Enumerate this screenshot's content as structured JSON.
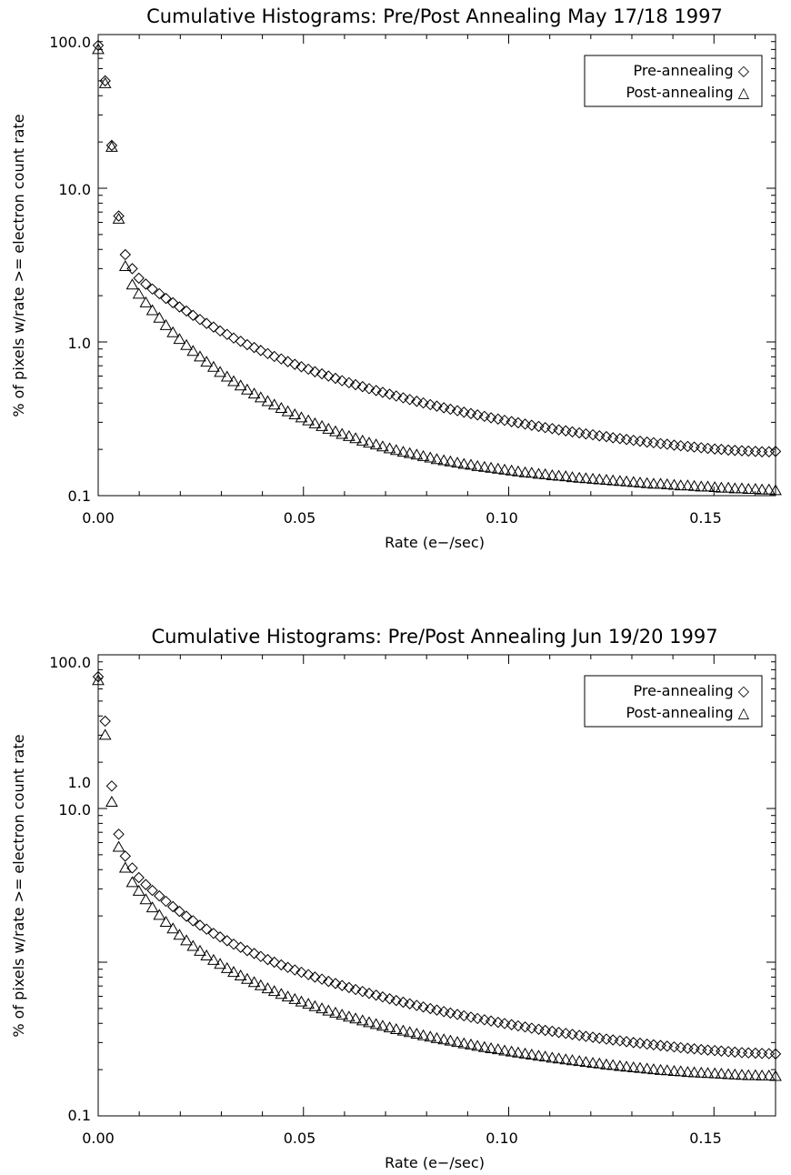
{
  "chart_data": [
    {
      "type": "scatter",
      "title": "Cumulative Histograms: Pre/Post Annealing May 17/18 1997",
      "xlabel": "Rate (e−/sec)",
      "ylabel": "% of pixels w/rate >= electron count rate",
      "xlim": [
        0,
        0.165
      ],
      "ylim": [
        0.1,
        100
      ],
      "yscale": "log",
      "xticks": [
        "0.00",
        "0.05",
        "0.10",
        "0.15"
      ],
      "yticks": [
        "0.1",
        "1.0",
        "10.0",
        "100.0"
      ],
      "grid": false,
      "legend_position": "top-right",
      "series": [
        {
          "name": "Pre-annealing ◇",
          "marker": "diamond",
          "x": [
            0,
            0.0017,
            0.0033,
            0.005,
            0.0066,
            0.0083,
            0.0099,
            0.0116,
            0.0132,
            0.0149,
            0.0165,
            0.0182,
            0.0198,
            0.0215,
            0.0231,
            0.0248,
            0.0264,
            0.0281,
            0.0297,
            0.0314,
            0.033,
            0.0347,
            0.0363,
            0.038,
            0.0396,
            0.0413,
            0.0429,
            0.0446,
            0.0462,
            0.0479,
            0.0495,
            0.0512,
            0.0528,
            0.0545,
            0.0561,
            0.0578,
            0.0594,
            0.0611,
            0.0627,
            0.0644,
            0.066,
            0.0677,
            0.0693,
            0.071,
            0.0726,
            0.0743,
            0.0759,
            0.0776,
            0.0792,
            0.0809,
            0.0825,
            0.0842,
            0.0858,
            0.0875,
            0.0891,
            0.0908,
            0.0924,
            0.0941,
            0.0957,
            0.0974,
            0.099,
            0.1007,
            0.1023,
            0.104,
            0.1056,
            0.1073,
            0.1089,
            0.1106,
            0.1122,
            0.1139,
            0.1155,
            0.1172,
            0.1188,
            0.1205,
            0.1221,
            0.1238,
            0.1254,
            0.1271,
            0.1287,
            0.1304,
            0.132,
            0.1337,
            0.1353,
            0.137,
            0.1386,
            0.1403,
            0.1419,
            0.1436,
            0.1452,
            0.1469,
            0.1485,
            0.1502,
            0.1518,
            0.1535,
            0.1551,
            0.1568,
            0.1584,
            0.1601,
            0.1617,
            0.1634,
            0.165
          ],
          "y": [
            85,
            50,
            19,
            6.6,
            3.7,
            3.0,
            2.6,
            2.38,
            2.21,
            2.06,
            1.92,
            1.8,
            1.69,
            1.59,
            1.49,
            1.4,
            1.32,
            1.25,
            1.18,
            1.12,
            1.06,
            1.01,
            0.96,
            0.92,
            0.88,
            0.84,
            0.805,
            0.775,
            0.745,
            0.715,
            0.69,
            0.665,
            0.64,
            0.62,
            0.6,
            0.58,
            0.56,
            0.543,
            0.527,
            0.512,
            0.497,
            0.483,
            0.47,
            0.457,
            0.445,
            0.433,
            0.422,
            0.411,
            0.401,
            0.391,
            0.382,
            0.373,
            0.365,
            0.357,
            0.349,
            0.342,
            0.335,
            0.328,
            0.321,
            0.315,
            0.309,
            0.303,
            0.298,
            0.292,
            0.287,
            0.282,
            0.277,
            0.273,
            0.268,
            0.264,
            0.26,
            0.256,
            0.252,
            0.249,
            0.245,
            0.242,
            0.238,
            0.235,
            0.232,
            0.229,
            0.226,
            0.223,
            0.221,
            0.218,
            0.216,
            0.213,
            0.211,
            0.209,
            0.207,
            0.205,
            0.203,
            0.201,
            0.2,
            0.198,
            0.197,
            0.196,
            0.195,
            0.194,
            0.193,
            0.193,
            0.194
          ]
        },
        {
          "name": "Post-annealing △",
          "marker": "triangle",
          "x": [
            0,
            0.0017,
            0.0033,
            0.005,
            0.0066,
            0.0083,
            0.0099,
            0.0116,
            0.0132,
            0.0149,
            0.0165,
            0.0182,
            0.0198,
            0.0215,
            0.0231,
            0.0248,
            0.0264,
            0.0281,
            0.0297,
            0.0314,
            0.033,
            0.0347,
            0.0363,
            0.038,
            0.0396,
            0.0413,
            0.0429,
            0.0446,
            0.0462,
            0.0479,
            0.0495,
            0.0512,
            0.0528,
            0.0545,
            0.0561,
            0.0578,
            0.0594,
            0.0611,
            0.0627,
            0.0644,
            0.066,
            0.0677,
            0.0693,
            0.071,
            0.0726,
            0.0743,
            0.0759,
            0.0776,
            0.0792,
            0.0809,
            0.0825,
            0.0842,
            0.0858,
            0.0875,
            0.0891,
            0.0908,
            0.0924,
            0.0941,
            0.0957,
            0.0974,
            0.099,
            0.1007,
            0.1023,
            0.104,
            0.1056,
            0.1073,
            0.1089,
            0.1106,
            0.1122,
            0.1139,
            0.1155,
            0.1172,
            0.1188,
            0.1205,
            0.1221,
            0.1238,
            0.1254,
            0.1271,
            0.1287,
            0.1304,
            0.132,
            0.1337,
            0.1353,
            0.137,
            0.1386,
            0.1403,
            0.1419,
            0.1436,
            0.1452,
            0.1469,
            0.1485,
            0.1502,
            0.1518,
            0.1535,
            0.1551,
            0.1568,
            0.1584,
            0.1601,
            0.1617,
            0.1634,
            0.165
          ],
          "y": [
            80,
            48,
            18.5,
            6.3,
            3.1,
            2.35,
            2.05,
            1.8,
            1.6,
            1.43,
            1.28,
            1.15,
            1.04,
            0.95,
            0.87,
            0.8,
            0.74,
            0.685,
            0.635,
            0.592,
            0.553,
            0.518,
            0.487,
            0.459,
            0.433,
            0.41,
            0.389,
            0.37,
            0.352,
            0.336,
            0.321,
            0.307,
            0.294,
            0.282,
            0.271,
            0.261,
            0.251,
            0.243,
            0.235,
            0.227,
            0.22,
            0.214,
            0.208,
            0.202,
            0.197,
            0.192,
            0.188,
            0.184,
            0.18,
            0.176,
            0.172,
            0.169,
            0.166,
            0.163,
            0.16,
            0.158,
            0.155,
            0.153,
            0.151,
            0.149,
            0.147,
            0.145,
            0.143,
            0.141,
            0.14,
            0.138,
            0.137,
            0.135,
            0.134,
            0.133,
            0.131,
            0.13,
            0.129,
            0.128,
            0.127,
            0.126,
            0.125,
            0.124,
            0.123,
            0.122,
            0.121,
            0.12,
            0.119,
            0.119,
            0.118,
            0.117,
            0.116,
            0.116,
            0.115,
            0.114,
            0.114,
            0.113,
            0.112,
            0.112,
            0.111,
            0.111,
            0.11,
            0.11,
            0.109,
            0.109,
            0.108
          ]
        }
      ]
    },
    {
      "type": "scatter",
      "title": "Cumulative Histograms: Pre/Post Annealing Jun 19/20 1997",
      "xlabel": "Rate (e−/sec)",
      "ylabel": "% of pixels w/rate >= electron count rate",
      "xlim": [
        0,
        0.165
      ],
      "ylim": [
        0.1,
        100
      ],
      "yscale": "log",
      "xticks": [
        "0.00",
        "0.05",
        "0.10",
        "0.15"
      ],
      "yticks": [
        "0.1",
        "1.0",
        "10.0",
        "100.0"
      ],
      "grid": false,
      "legend_position": "top-right",
      "series": [
        {
          "name": "Pre-annealing ◇",
          "marker": "diamond",
          "x": [
            0,
            0.0017,
            0.0033,
            0.005,
            0.0066,
            0.0083,
            0.0099,
            0.0116,
            0.0132,
            0.0149,
            0.0165,
            0.0182,
            0.0198,
            0.0215,
            0.0231,
            0.0248,
            0.0264,
            0.0281,
            0.0297,
            0.0314,
            0.033,
            0.0347,
            0.0363,
            0.038,
            0.0396,
            0.0413,
            0.0429,
            0.0446,
            0.0462,
            0.0479,
            0.0495,
            0.0512,
            0.0528,
            0.0545,
            0.0561,
            0.0578,
            0.0594,
            0.0611,
            0.0627,
            0.0644,
            0.066,
            0.0677,
            0.0693,
            0.071,
            0.0726,
            0.0743,
            0.0759,
            0.0776,
            0.0792,
            0.0809,
            0.0825,
            0.0842,
            0.0858,
            0.0875,
            0.0891,
            0.0908,
            0.0924,
            0.0941,
            0.0957,
            0.0974,
            0.099,
            0.1007,
            0.1023,
            0.104,
            0.1056,
            0.1073,
            0.1089,
            0.1106,
            0.1122,
            0.1139,
            0.1155,
            0.1172,
            0.1188,
            0.1205,
            0.1221,
            0.1238,
            0.1254,
            0.1271,
            0.1287,
            0.1304,
            0.132,
            0.1337,
            0.1353,
            0.137,
            0.1386,
            0.1403,
            0.1419,
            0.1436,
            0.1452,
            0.1469,
            0.1485,
            0.1502,
            0.1518,
            0.1535,
            0.1551,
            0.1568,
            0.1584,
            0.1601,
            0.1617,
            0.1634,
            0.165
          ],
          "y": [
            72,
            37,
            14,
            6.8,
            4.9,
            4.1,
            3.55,
            3.2,
            2.93,
            2.7,
            2.49,
            2.3,
            2.14,
            1.99,
            1.86,
            1.74,
            1.64,
            1.54,
            1.46,
            1.38,
            1.31,
            1.25,
            1.19,
            1.14,
            1.09,
            1.04,
            1.0,
            0.96,
            0.925,
            0.89,
            0.86,
            0.83,
            0.8,
            0.775,
            0.75,
            0.727,
            0.705,
            0.684,
            0.664,
            0.645,
            0.627,
            0.61,
            0.594,
            0.578,
            0.563,
            0.549,
            0.536,
            0.523,
            0.511,
            0.499,
            0.488,
            0.477,
            0.467,
            0.457,
            0.448,
            0.439,
            0.43,
            0.422,
            0.414,
            0.406,
            0.399,
            0.392,
            0.385,
            0.379,
            0.372,
            0.366,
            0.36,
            0.355,
            0.349,
            0.344,
            0.339,
            0.334,
            0.329,
            0.325,
            0.32,
            0.316,
            0.312,
            0.308,
            0.304,
            0.3,
            0.297,
            0.293,
            0.29,
            0.287,
            0.284,
            0.281,
            0.278,
            0.275,
            0.273,
            0.27,
            0.268,
            0.266,
            0.264,
            0.262,
            0.26,
            0.258,
            0.257,
            0.256,
            0.255,
            0.254,
            0.253
          ]
        },
        {
          "name": "Post-annealing △",
          "marker": "triangle",
          "x": [
            0,
            0.0017,
            0.0033,
            0.005,
            0.0066,
            0.0083,
            0.0099,
            0.0116,
            0.0132,
            0.0149,
            0.0165,
            0.0182,
            0.0198,
            0.0215,
            0.0231,
            0.0248,
            0.0264,
            0.0281,
            0.0297,
            0.0314,
            0.033,
            0.0347,
            0.0363,
            0.038,
            0.0396,
            0.0413,
            0.0429,
            0.0446,
            0.0462,
            0.0479,
            0.0495,
            0.0512,
            0.0528,
            0.0545,
            0.0561,
            0.0578,
            0.0594,
            0.0611,
            0.0627,
            0.0644,
            0.066,
            0.0677,
            0.0693,
            0.071,
            0.0726,
            0.0743,
            0.0759,
            0.0776,
            0.0792,
            0.0809,
            0.0825,
            0.0842,
            0.0858,
            0.0875,
            0.0891,
            0.0908,
            0.0924,
            0.0941,
            0.0957,
            0.0974,
            0.099,
            0.1007,
            0.1023,
            0.104,
            0.1056,
            0.1073,
            0.1089,
            0.1106,
            0.1122,
            0.1139,
            0.1155,
            0.1172,
            0.1188,
            0.1205,
            0.1221,
            0.1238,
            0.1254,
            0.1271,
            0.1287,
            0.1304,
            0.132,
            0.1337,
            0.1353,
            0.137,
            0.1386,
            0.1403,
            0.1419,
            0.1436,
            0.1452,
            0.1469,
            0.1485,
            0.1502,
            0.1518,
            0.1535,
            0.1551,
            0.1568,
            0.1584,
            0.1601,
            0.1617,
            0.1634,
            0.165
          ],
          "y": [
            68,
            30,
            11,
            5.6,
            4.1,
            3.3,
            2.9,
            2.55,
            2.26,
            2.02,
            1.82,
            1.65,
            1.5,
            1.38,
            1.27,
            1.18,
            1.1,
            1.03,
            0.97,
            0.91,
            0.86,
            0.815,
            0.775,
            0.738,
            0.704,
            0.673,
            0.645,
            0.619,
            0.595,
            0.573,
            0.552,
            0.533,
            0.515,
            0.498,
            0.482,
            0.467,
            0.453,
            0.44,
            0.428,
            0.416,
            0.405,
            0.394,
            0.384,
            0.374,
            0.365,
            0.357,
            0.349,
            0.341,
            0.333,
            0.326,
            0.319,
            0.313,
            0.307,
            0.301,
            0.295,
            0.29,
            0.284,
            0.279,
            0.274,
            0.27,
            0.265,
            0.261,
            0.257,
            0.253,
            0.249,
            0.245,
            0.242,
            0.238,
            0.235,
            0.232,
            0.229,
            0.226,
            0.223,
            0.22,
            0.218,
            0.215,
            0.213,
            0.21,
            0.208,
            0.206,
            0.204,
            0.202,
            0.2,
            0.198,
            0.197,
            0.195,
            0.194,
            0.192,
            0.191,
            0.19,
            0.189,
            0.188,
            0.187,
            0.186,
            0.185,
            0.184,
            0.183,
            0.183,
            0.182,
            0.182,
            0.181
          ]
        }
      ]
    }
  ]
}
